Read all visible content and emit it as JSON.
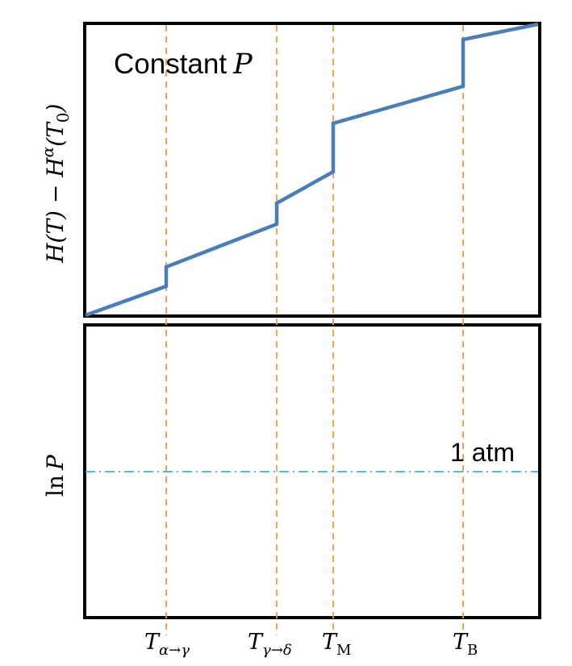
{
  "top_panel": {
    "label": "Constant",
    "label_var": "P",
    "ylabel": {
      "main": "H(T) − H",
      "sup": "α",
      "tail": "(T",
      "sub": "0",
      "close": ")"
    }
  },
  "bottom_panel": {
    "ylabel": {
      "fn": "ln",
      "var": "P"
    },
    "pressure_line_label": "1 atm"
  },
  "transitions": [
    {
      "id": "alpha-gamma",
      "base": "T",
      "sub": "α→γ"
    },
    {
      "id": "gamma-delta",
      "base": "T",
      "sub": "γ→δ"
    },
    {
      "id": "melting",
      "base": "T",
      "sub": "M"
    },
    {
      "id": "boiling",
      "base": "T",
      "sub": "B"
    }
  ],
  "colors": {
    "frame": "#000000",
    "curve": "#4A7EBB",
    "transition_lines": "#F79646",
    "pressure_line": "#4BACC6"
  }
}
